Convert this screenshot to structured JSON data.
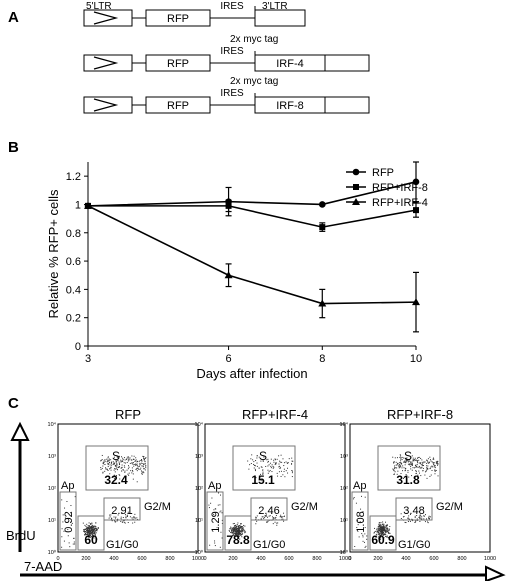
{
  "panel_a": {
    "label": "A",
    "constructs": [
      {
        "boxes": [
          "",
          "RFP",
          "",
          ""
        ],
        "ltr5": "5'LTR",
        "ires": "IRES",
        "ltr3": "3'LTR",
        "tag": ""
      },
      {
        "boxes": [
          "",
          "RFP",
          "IRF-4",
          ""
        ],
        "ires": "IRES",
        "tag": "2x myc tag"
      },
      {
        "boxes": [
          "",
          "RFP",
          "IRF-8",
          ""
        ],
        "ires": "IRES",
        "tag": "2x myc tag"
      }
    ]
  },
  "panel_b": {
    "label": "B",
    "chart_data": {
      "type": "line",
      "title": "",
      "xlabel": "Days after infection",
      "ylabel": "Relative % RFP+  cells",
      "x": [
        3,
        6,
        8,
        10
      ],
      "xticks": [
        "3",
        "6",
        "8",
        "10"
      ],
      "yticks": [
        "0",
        "0.2",
        "0.4",
        "0.6",
        "0.8",
        "1",
        "1.2"
      ],
      "ylim": [
        0,
        1.3
      ],
      "legend_position": "top-right",
      "series": [
        {
          "name": "RFP",
          "marker": "circle",
          "values": [
            0.99,
            1.02,
            1.0,
            1.16
          ],
          "errors": [
            0,
            0.1,
            0,
            0.14
          ]
        },
        {
          "name": "RFP+IRF-8",
          "marker": "square",
          "values": [
            0.99,
            0.99,
            0.84,
            0.96
          ],
          "errors": [
            0,
            0.04,
            0.03,
            0.05
          ]
        },
        {
          "name": "RFP+IRF-4",
          "marker": "triangle",
          "values": [
            0.99,
            0.5,
            0.3,
            0.31
          ],
          "errors": [
            0,
            0.08,
            0.1,
            0.21
          ]
        }
      ]
    }
  },
  "panel_c": {
    "label": "C",
    "y_axis_label": "BrdU",
    "x_axis_label": "7-AAD",
    "plots": [
      {
        "title": "RFP",
        "S": "32.4",
        "G2M": "2.91",
        "G1G0": "60",
        "Ap": "0.92"
      },
      {
        "title": "RFP+IRF-4",
        "S": "15.1",
        "G2M": "2.46",
        "G1G0": "78.8",
        "Ap": "1.29"
      },
      {
        "title": "RFP+IRF-8",
        "S": "31.8",
        "G2M": "3.48",
        "G1G0": "60.9",
        "Ap": "1.08"
      }
    ],
    "gate_labels": {
      "S": "S",
      "G2M": "G2/M",
      "G1G0": "G1/G0",
      "Ap": "Ap"
    },
    "flow_xticks": [
      "0",
      "200",
      "400",
      "600",
      "800",
      "1000"
    ],
    "flow_yticks": [
      "10⁰",
      "10¹",
      "10²",
      "10³",
      "10⁴"
    ]
  }
}
